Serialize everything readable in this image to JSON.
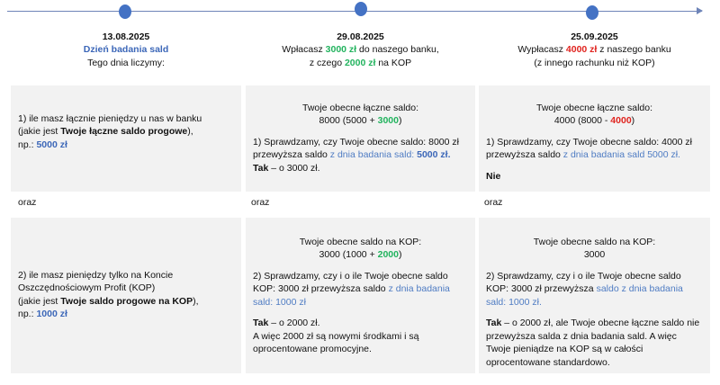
{
  "colors": {
    "accent": "#4472c4",
    "green": "#22b35e",
    "red": "#e0241f",
    "box": "#f2f2f2"
  },
  "timeline": [
    {
      "date": "13.08.2025",
      "title": "Dzień badania sald",
      "sub": "Tego dnia liczymy:"
    },
    {
      "date": "29.08.2025",
      "l1a": "Wpłacasz ",
      "l1b": "3000 zł",
      "l1c": " do naszego banku,",
      "l2a": "z czego ",
      "l2b": "2000 zł",
      "l2c": " na KOP"
    },
    {
      "date": "25.09.2025",
      "l1a": "Wypłacasz ",
      "l1b": "4000 zł",
      "l1c": " z naszego banku",
      "l2": "(z innego rachunku niż KOP)"
    }
  ],
  "oraz": "oraz",
  "col1": {
    "top": {
      "a": "1)  ile masz łącznie pieniędzy u nas w banku",
      "b": " (jakie jest ",
      "c": "Twoje łączne saldo progowe",
      "d": "),",
      "e": "np.: ",
      "f": "5000 zł"
    },
    "bot": {
      "a": "2) ile masz pieniędzy tylko na Koncie Oszczędnościowym Profit (KOP)",
      "b": "(jakie jest ",
      "c": "Twoje saldo progowe na KOP",
      "d": "),",
      "e": "np.: ",
      "f": "1000 zł"
    }
  },
  "col2": {
    "top": {
      "h1": "Twoje obecne łączne saldo:",
      "h2a": "8000 (5000 + ",
      "h2b": "3000",
      "h2c": ")",
      "a": "1) Sprawdzamy, czy Twoje obecne saldo: 8000 zł przewyższa saldo ",
      "b": "z dnia badania sald: ",
      "c": "5000 zł.",
      "d": "Tak",
      "e": " – o 3000 zł."
    },
    "bot": {
      "h1": "Twoje obecne saldo na KOP:",
      "h2a": "3000 (1000 + ",
      "h2b": "2000",
      "h2c": ")",
      "a": "2) Sprawdzamy, czy i o ile Twoje obecne saldo KOP: 3000 zł przewyższa saldo ",
      "b": "z dnia badania sald: 1000 zł",
      "d": "Tak",
      "e": " – o 2000 zł.",
      "f": "A więc 2000 zł są nowymi środkami i są oprocentowane promocyjne."
    }
  },
  "col3": {
    "top": {
      "h1": "Twoje obecne łączne saldo:",
      "h2a": "4000 (8000 - ",
      "h2b": "4000",
      "h2c": ")",
      "a": "1) Sprawdzamy, czy Twoje obecne saldo: 4000 zł przewyższa saldo ",
      "b": "z dnia badania sald 5000 zł.",
      "d": "Nie"
    },
    "bot": {
      "h1": "Twoje obecne saldo na KOP:",
      "h2": "3000",
      "a": "2) Sprawdzamy, czy i o ile Twoje obecne saldo KOP: 3000 zł przewyższa ",
      "b": "saldo z dnia badania sald: 1000 zł.",
      "d": "Tak",
      "e": " – o 2000 zł, ale Twoje obecne łączne saldo nie przewyższa salda z dnia badania sald. A więc Twoje pieniądze na KOP są w całości oprocentowane standardowo."
    }
  }
}
